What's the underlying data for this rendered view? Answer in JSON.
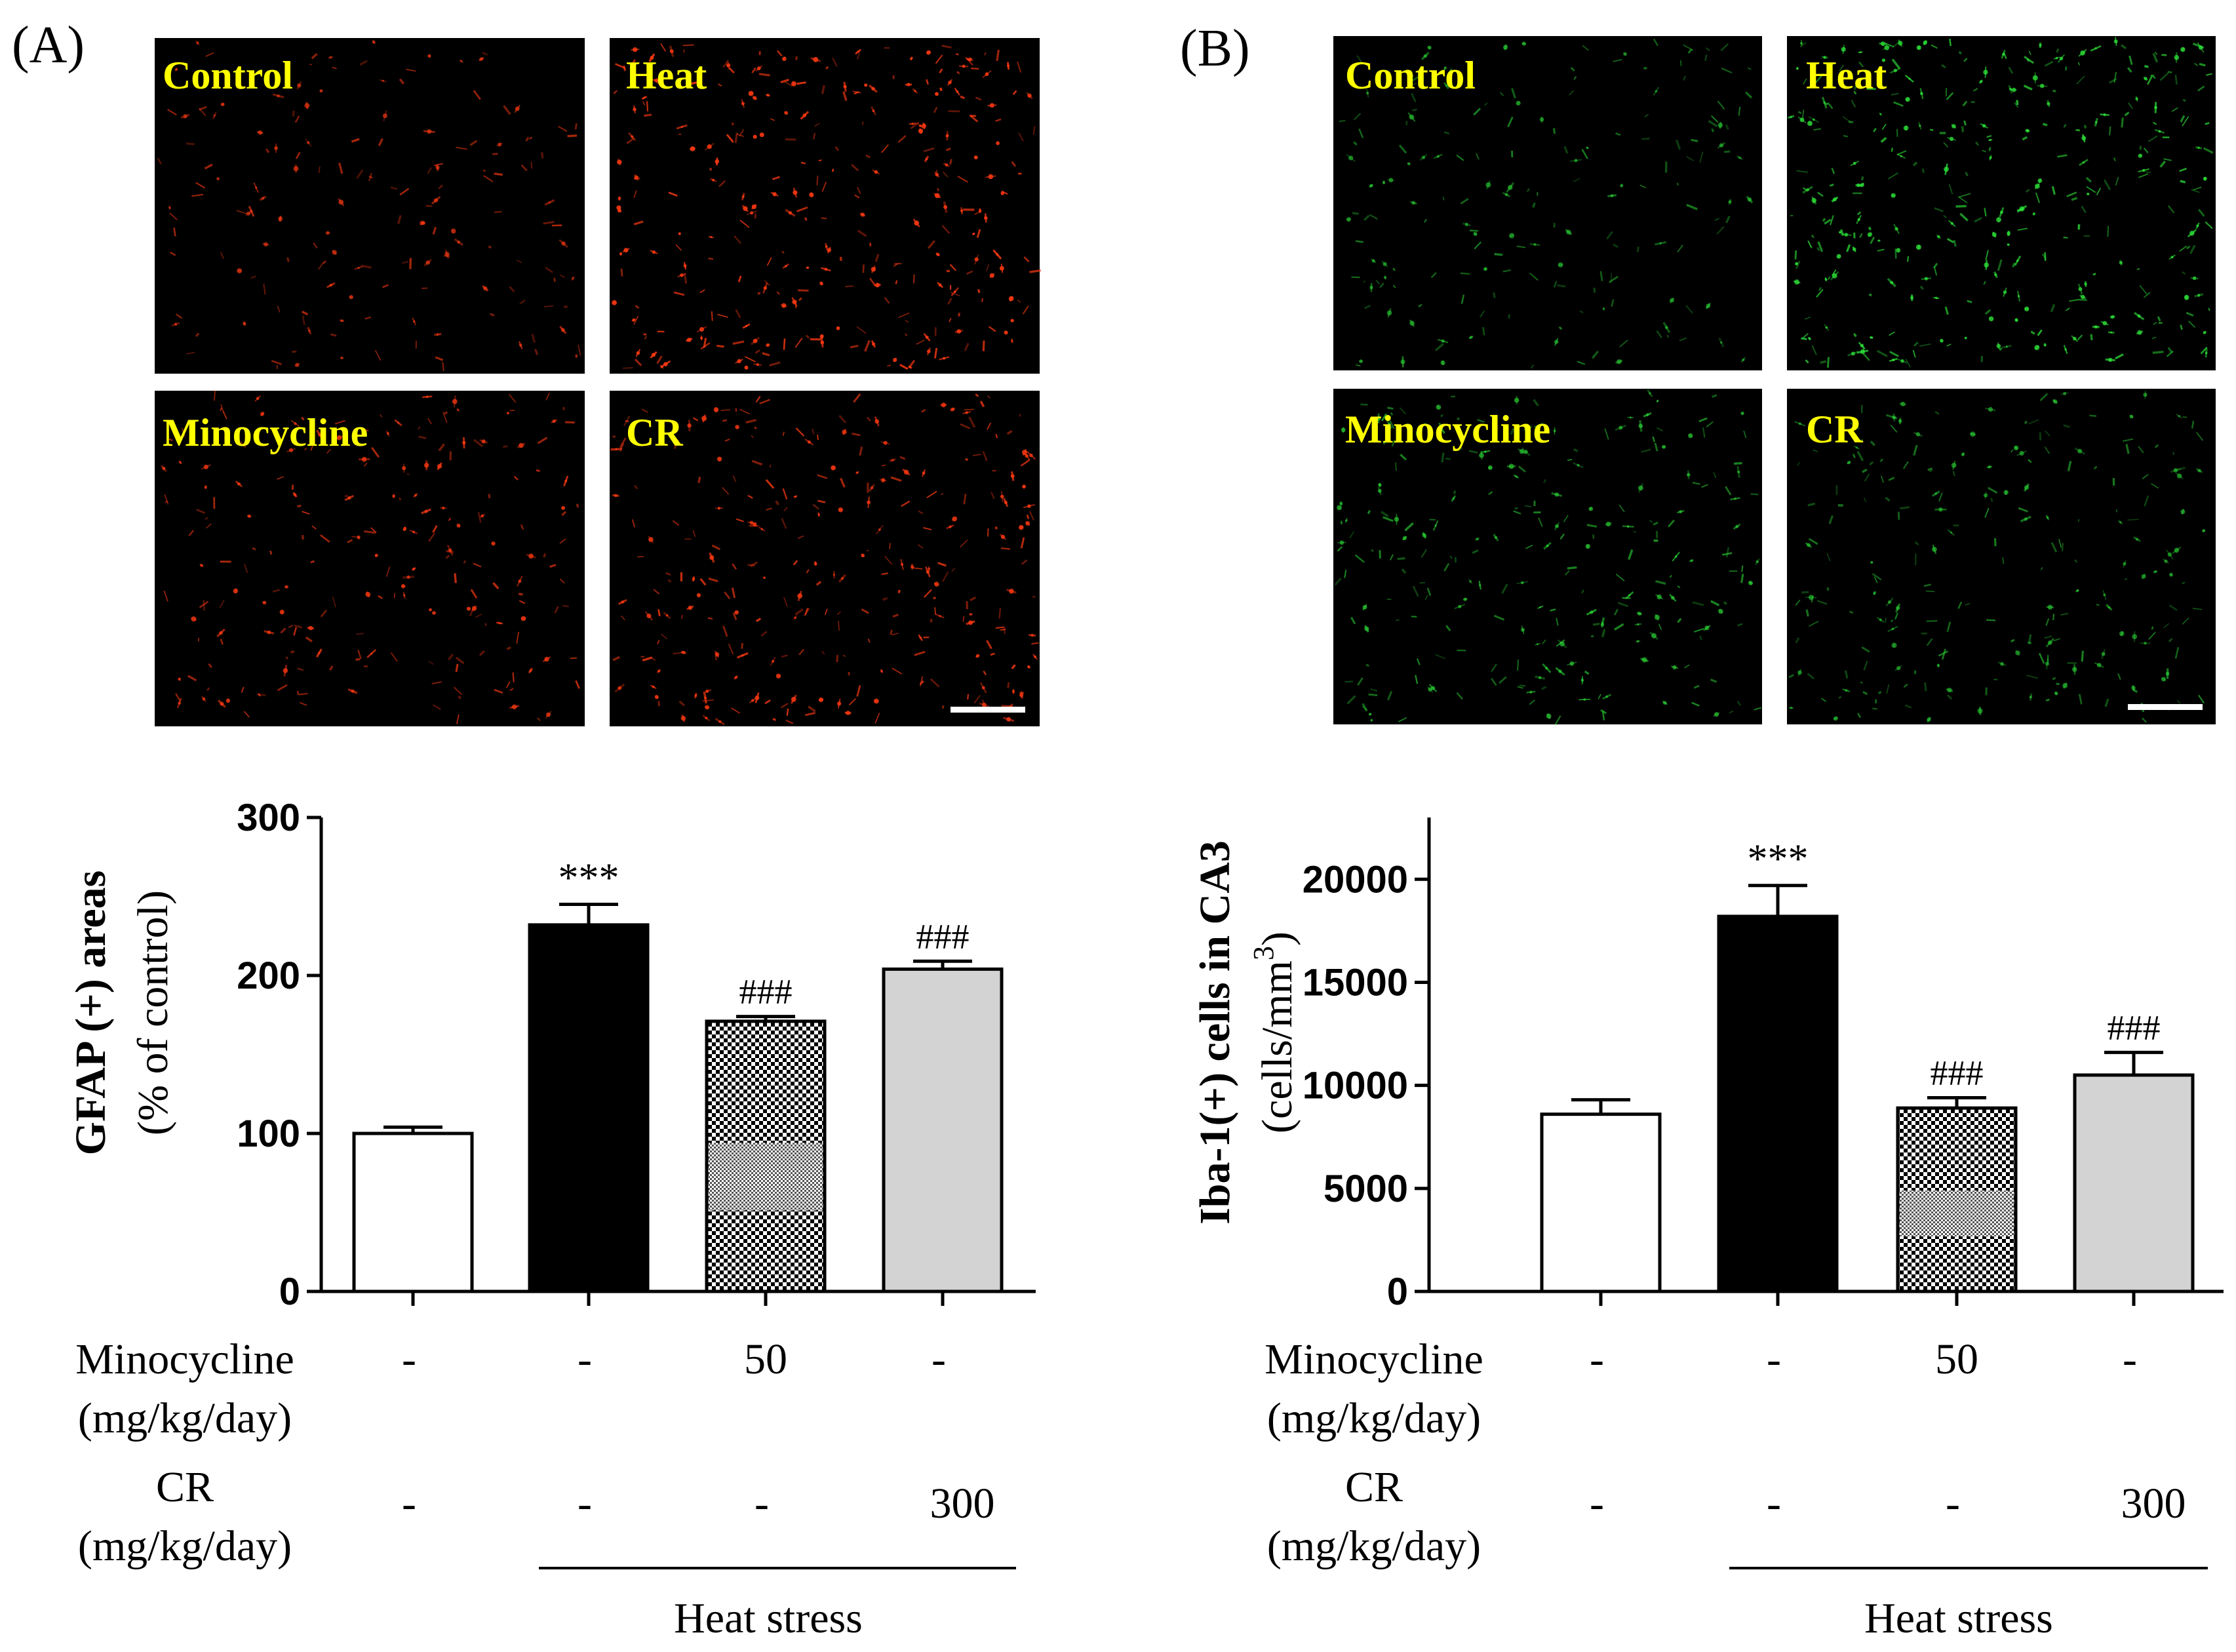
{
  "colors": {
    "gfap_stain": "#ff3a12",
    "iba1_stain": "#2ee83a",
    "micrograph_label": "#ffff00",
    "control_bar": "#ffffff",
    "heat_bar": "#000000",
    "cr_bar": "#d3d3d3"
  },
  "panel_a": {
    "letter": "(A)",
    "micrographs": [
      "Control",
      "Heat",
      "Minocycline",
      "CR"
    ]
  },
  "panel_b": {
    "letter": "(B)",
    "micrographs": [
      "Control",
      "Heat",
      "Minocycline",
      "CR"
    ]
  },
  "chart_data": [
    {
      "type": "bar",
      "panel": "A",
      "title": "",
      "ylabel": "GFAP (+) areas",
      "ylabel_sub": "(% of control)",
      "ylim": [
        0,
        300
      ],
      "yticks": [
        "0",
        "100",
        "200",
        "300"
      ],
      "categories": [
        "Control",
        "Heat",
        "Heat + Minocycline",
        "Heat + CR"
      ],
      "values": [
        100,
        232,
        171,
        204
      ],
      "errors": [
        4,
        13,
        3,
        5
      ],
      "bar_fills": [
        "white",
        "black",
        "checker",
        "lightgray"
      ],
      "annotations": [
        "",
        "***",
        "###",
        "###"
      ],
      "treatments": [
        {
          "name": "Minocycline",
          "unit": "(mg/kg/day)",
          "doses": [
            "-",
            "-",
            "50",
            "-"
          ]
        },
        {
          "name": "CR",
          "unit": "(mg/kg/day)",
          "doses": [
            "-",
            "-",
            "-",
            "300"
          ]
        }
      ],
      "group_label": "Heat stress"
    },
    {
      "type": "bar",
      "panel": "B",
      "title": "",
      "ylabel": "Iba-1(+) cells in CA3",
      "ylabel_sub_prefix": "(cells/mm",
      "ylabel_sub_sup": "3",
      "ylabel_sub_suffix": ")",
      "ylim": [
        0,
        23000
      ],
      "yticks": [
        "0",
        "5000",
        "10000",
        "15000",
        "20000"
      ],
      "categories": [
        "Control",
        "Heat",
        "Heat + Minocycline",
        "Heat + CR"
      ],
      "values": [
        8600,
        18200,
        8900,
        10500
      ],
      "errors": [
        700,
        1500,
        500,
        1100
      ],
      "bar_fills": [
        "white",
        "black",
        "checker",
        "lightgray"
      ],
      "annotations": [
        "",
        "***",
        "###",
        "###"
      ],
      "treatments": [
        {
          "name": "Minocycline",
          "unit": "(mg/kg/day)",
          "doses": [
            "-",
            "-",
            "50",
            "-"
          ]
        },
        {
          "name": "CR",
          "unit": "(mg/kg/day)",
          "doses": [
            "-",
            "-",
            "-",
            "300"
          ]
        }
      ],
      "group_label": "Heat stress"
    }
  ]
}
